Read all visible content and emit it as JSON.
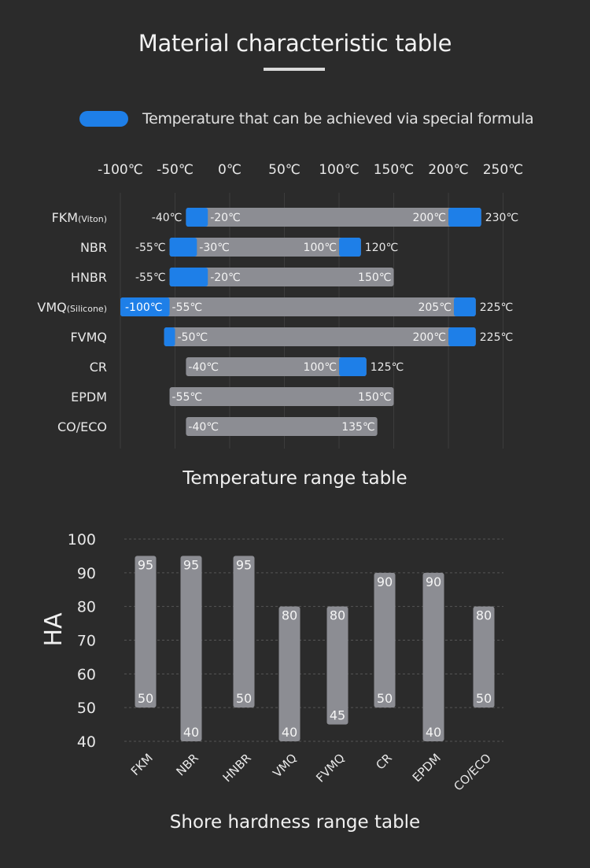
{
  "page": {
    "title": "Material characteristic table"
  },
  "legend": {
    "label": "Temperature that can be achieved via special formula",
    "color": "#1e7fe8"
  },
  "colors": {
    "background": "#2b2b2b",
    "bar_gray": "#8c8d93",
    "special_blue": "#1e7fe8",
    "text": "#e8e8e8"
  },
  "chart_data": [
    {
      "type": "bar",
      "orientation": "horizontal-range",
      "title": "Temperature range table",
      "x_ticks": [
        "-100℃",
        "-50℃",
        "0℃",
        "50℃",
        "100℃",
        "150℃",
        "200℃",
        "250℃"
      ],
      "xlim": [
        -100,
        250
      ],
      "materials": [
        {
          "name": "FKM",
          "suffix": "(Viton)",
          "special_min": -40,
          "std_min": -20,
          "std_max": 200,
          "special_max": 230,
          "labels": {
            "special_min": "-40℃",
            "std_min": "-20℃",
            "std_max": "200℃",
            "special_max": "230℃"
          }
        },
        {
          "name": "NBR",
          "suffix": "",
          "special_min": -55,
          "std_min": -30,
          "std_max": 100,
          "special_max": 120,
          "labels": {
            "special_min": "-55℃",
            "std_min": "-30℃",
            "std_max": "100℃",
            "special_max": "120℃"
          }
        },
        {
          "name": "HNBR",
          "suffix": "",
          "special_min": -55,
          "std_min": -20,
          "std_max": 150,
          "special_max": null,
          "labels": {
            "special_min": "-55℃",
            "std_min": "-20℃",
            "std_max": "150℃",
            "special_max": ""
          }
        },
        {
          "name": "VMQ",
          "suffix": "(Silicone)",
          "special_min": -100,
          "std_min": -55,
          "std_max": 205,
          "special_max": 225,
          "labels": {
            "special_min": "-100℃",
            "std_min": "-55℃",
            "std_max": "205℃",
            "special_max": "225℃"
          }
        },
        {
          "name": "FVMQ",
          "suffix": "",
          "special_min": -60,
          "std_min": -50,
          "std_max": 200,
          "special_max": 225,
          "labels": {
            "special_min": "",
            "std_min": "-50℃",
            "std_max": "200℃",
            "special_max": "225℃"
          }
        },
        {
          "name": "CR",
          "suffix": "",
          "special_min": null,
          "std_min": -40,
          "std_max": 100,
          "special_max": 125,
          "labels": {
            "special_min": "",
            "std_min": "-40℃",
            "std_max": "100℃",
            "special_max": "125℃"
          }
        },
        {
          "name": "EPDM",
          "suffix": "",
          "special_min": null,
          "std_min": -55,
          "std_max": 150,
          "special_max": null,
          "labels": {
            "special_min": "",
            "std_min": "-55℃",
            "std_max": "150℃",
            "special_max": ""
          }
        },
        {
          "name": "CO/ECO",
          "suffix": "",
          "special_min": null,
          "std_min": -40,
          "std_max": 135,
          "special_max": null,
          "labels": {
            "special_min": "",
            "std_min": "-40℃",
            "std_max": "135℃",
            "special_max": ""
          }
        }
      ]
    },
    {
      "type": "bar",
      "orientation": "vertical-range",
      "title": "Shore hardness range table",
      "ylabel": "HA",
      "ylim": [
        40,
        100
      ],
      "y_ticks": [
        100,
        90,
        80,
        70,
        60,
        50,
        40
      ],
      "grid": true,
      "categories": [
        "FKM",
        "NBR",
        "HNBR",
        "VMQ",
        "FVMQ",
        "CR",
        "EPDM",
        "CO/ECO"
      ],
      "min": [
        50,
        40,
        50,
        40,
        45,
        50,
        40,
        50
      ],
      "max": [
        95,
        95,
        95,
        80,
        80,
        90,
        90,
        80
      ]
    }
  ]
}
